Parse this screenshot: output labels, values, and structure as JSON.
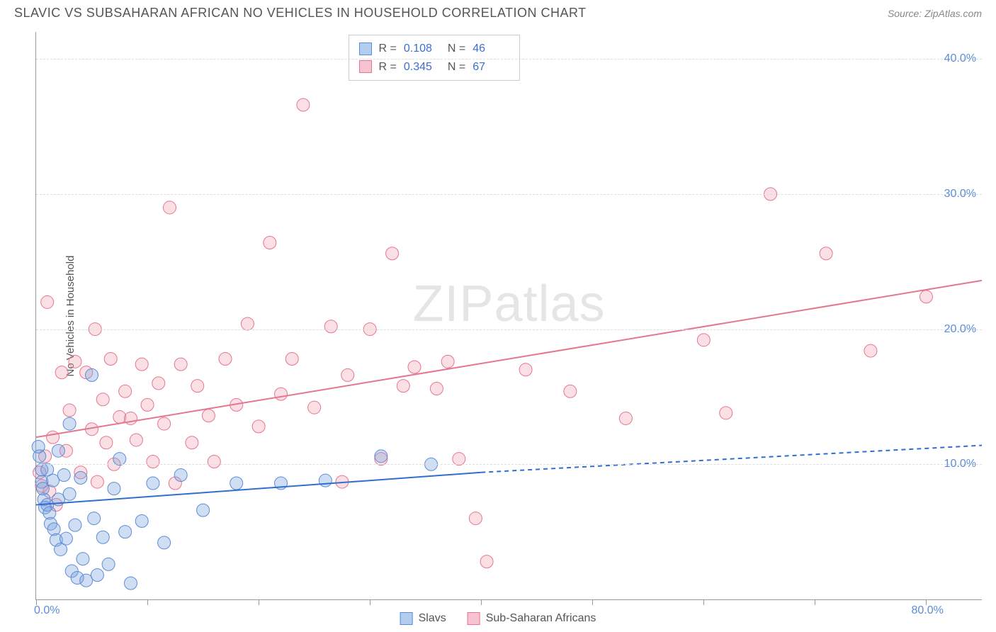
{
  "header": {
    "title": "SLAVIC VS SUBSAHARAN AFRICAN NO VEHICLES IN HOUSEHOLD CORRELATION CHART",
    "source": "Source: ZipAtlas.com"
  },
  "watermark": {
    "part1": "ZIP",
    "part2": "atlas"
  },
  "y_axis": {
    "label": "No Vehicles in Household",
    "min": 0,
    "max": 42,
    "ticks": [
      10,
      20,
      30,
      40
    ],
    "tick_labels": [
      "10.0%",
      "20.0%",
      "30.0%",
      "40.0%"
    ],
    "tick_color": "#5b8dd6",
    "grid_color": "#dddddd"
  },
  "x_axis": {
    "min": 0,
    "max": 85,
    "start_label": "0.0%",
    "end_label": "80.0%",
    "tick_positions": [
      0,
      10,
      20,
      30,
      40,
      50,
      60,
      70,
      80
    ],
    "tick_color": "#5b8dd6"
  },
  "series": {
    "slavs": {
      "label": "Slavs",
      "fill": "rgba(120,160,220,0.35)",
      "stroke": "#5b8dd6",
      "swatch_fill": "#b3cdef",
      "swatch_border": "#5b8dd6",
      "r_value": "0.108",
      "n_value": "46",
      "marker_r": 9,
      "points": [
        [
          0.2,
          11.3
        ],
        [
          0.3,
          10.6
        ],
        [
          0.5,
          9.6
        ],
        [
          0.5,
          8.7
        ],
        [
          0.6,
          8.2
        ],
        [
          0.7,
          7.4
        ],
        [
          0.8,
          6.8
        ],
        [
          1.0,
          9.6
        ],
        [
          1.0,
          7.0
        ],
        [
          1.2,
          6.4
        ],
        [
          1.3,
          5.6
        ],
        [
          1.5,
          8.8
        ],
        [
          1.6,
          5.2
        ],
        [
          1.8,
          4.4
        ],
        [
          2.0,
          11.0
        ],
        [
          2.0,
          7.4
        ],
        [
          2.2,
          3.7
        ],
        [
          2.5,
          9.2
        ],
        [
          2.7,
          4.5
        ],
        [
          3.0,
          13.0
        ],
        [
          3.0,
          7.8
        ],
        [
          3.2,
          2.1
        ],
        [
          3.5,
          5.5
        ],
        [
          3.7,
          1.6
        ],
        [
          4.0,
          9.0
        ],
        [
          4.2,
          3.0
        ],
        [
          4.5,
          1.4
        ],
        [
          5.0,
          16.6
        ],
        [
          5.2,
          6.0
        ],
        [
          5.5,
          1.8
        ],
        [
          6.0,
          4.6
        ],
        [
          6.5,
          2.6
        ],
        [
          7.0,
          8.2
        ],
        [
          7.5,
          10.4
        ],
        [
          8.0,
          5.0
        ],
        [
          8.5,
          1.2
        ],
        [
          9.5,
          5.8
        ],
        [
          10.5,
          8.6
        ],
        [
          11.5,
          4.2
        ],
        [
          13.0,
          9.2
        ],
        [
          15.0,
          6.6
        ],
        [
          18.0,
          8.6
        ],
        [
          22.0,
          8.6
        ],
        [
          26.0,
          8.8
        ],
        [
          31.0,
          10.6
        ],
        [
          35.5,
          10.0
        ]
      ],
      "trend": {
        "x1": 0,
        "y1": 7.0,
        "x2_solid": 40,
        "y2_solid": 9.4,
        "x2_dash": 85,
        "y2_dash": 11.4,
        "color": "#2f6fd0",
        "width": 2
      }
    },
    "ssa": {
      "label": "Sub-Saharan Africans",
      "fill": "rgba(240,150,170,0.30)",
      "stroke": "#e5768f",
      "swatch_fill": "#f6c4d0",
      "swatch_border": "#e5768f",
      "r_value": "0.345",
      "n_value": "67",
      "marker_r": 9,
      "points": [
        [
          0.3,
          9.4
        ],
        [
          0.5,
          8.4
        ],
        [
          0.8,
          10.6
        ],
        [
          1.0,
          22.0
        ],
        [
          1.2,
          8.0
        ],
        [
          1.5,
          12.0
        ],
        [
          1.8,
          7.0
        ],
        [
          2.3,
          16.8
        ],
        [
          2.7,
          11.0
        ],
        [
          3.0,
          14.0
        ],
        [
          3.5,
          17.6
        ],
        [
          4.0,
          9.4
        ],
        [
          4.5,
          16.8
        ],
        [
          5.0,
          12.6
        ],
        [
          5.3,
          20.0
        ],
        [
          5.5,
          8.7
        ],
        [
          6.0,
          14.8
        ],
        [
          6.3,
          11.6
        ],
        [
          6.7,
          17.8
        ],
        [
          7.0,
          10.0
        ],
        [
          7.5,
          13.5
        ],
        [
          8.0,
          15.4
        ],
        [
          8.5,
          13.4
        ],
        [
          9.0,
          11.8
        ],
        [
          9.5,
          17.4
        ],
        [
          10.0,
          14.4
        ],
        [
          10.5,
          10.2
        ],
        [
          11.0,
          16.0
        ],
        [
          11.5,
          13.0
        ],
        [
          12.0,
          29.0
        ],
        [
          12.5,
          8.6
        ],
        [
          13.0,
          17.4
        ],
        [
          14.0,
          11.6
        ],
        [
          14.5,
          15.8
        ],
        [
          15.5,
          13.6
        ],
        [
          16.0,
          10.2
        ],
        [
          17.0,
          17.8
        ],
        [
          18.0,
          14.4
        ],
        [
          19.0,
          20.4
        ],
        [
          20.0,
          12.8
        ],
        [
          21.0,
          26.4
        ],
        [
          22.0,
          15.2
        ],
        [
          23.0,
          17.8
        ],
        [
          24.0,
          36.6
        ],
        [
          25.0,
          14.2
        ],
        [
          26.5,
          20.2
        ],
        [
          27.5,
          8.7
        ],
        [
          28.0,
          16.6
        ],
        [
          30.0,
          20.0
        ],
        [
          31.0,
          10.4
        ],
        [
          32.0,
          25.6
        ],
        [
          33.0,
          15.8
        ],
        [
          34.0,
          17.2
        ],
        [
          36.0,
          15.6
        ],
        [
          37.0,
          17.6
        ],
        [
          38.0,
          10.4
        ],
        [
          39.5,
          6.0
        ],
        [
          40.5,
          2.8
        ],
        [
          44.0,
          17.0
        ],
        [
          48.0,
          15.4
        ],
        [
          53.0,
          13.4
        ],
        [
          60.0,
          19.2
        ],
        [
          66.0,
          30.0
        ],
        [
          71.0,
          25.6
        ],
        [
          75.0,
          18.4
        ],
        [
          80.0,
          22.4
        ],
        [
          62.0,
          13.8
        ]
      ],
      "trend": {
        "x1": 0,
        "y1": 12.0,
        "x2_solid": 85,
        "y2_solid": 23.6,
        "color": "#e5768f",
        "width": 2
      }
    }
  },
  "stats_box": {
    "r_label": "R =",
    "n_label": "N ="
  }
}
